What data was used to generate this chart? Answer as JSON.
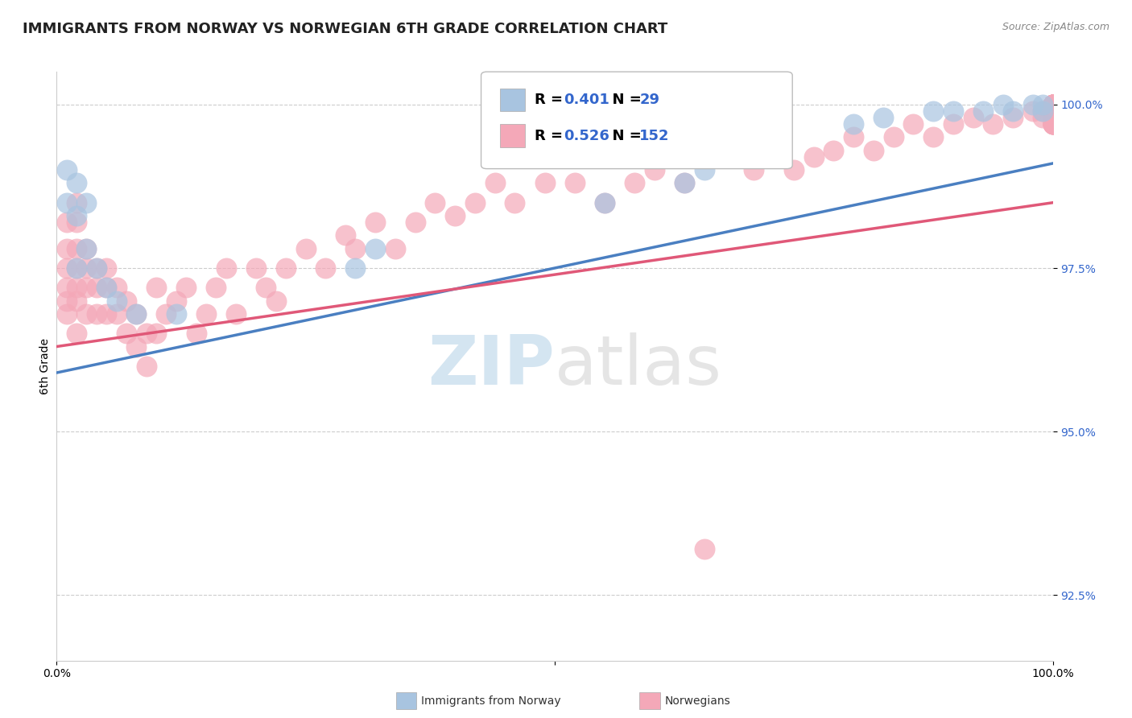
{
  "title": "IMMIGRANTS FROM NORWAY VS NORWEGIAN 6TH GRADE CORRELATION CHART",
  "source_text": "Source: ZipAtlas.com",
  "xlabel": "",
  "ylabel": "6th Grade",
  "x_min": 0.0,
  "x_max": 1.0,
  "y_min": 0.915,
  "y_max": 1.005,
  "y_tick_labels": [
    "92.5%",
    "95.0%",
    "97.5%",
    "100.0%"
  ],
  "y_tick_values": [
    0.925,
    0.95,
    0.975,
    1.0
  ],
  "grid_color": "#cccccc",
  "background_color": "#ffffff",
  "blue_scatter_color": "#a8c4e0",
  "pink_scatter_color": "#f4a8b8",
  "blue_line_color": "#4a7fc1",
  "pink_line_color": "#e05878",
  "legend_R1": "0.401",
  "legend_N1": "29",
  "legend_R2": "0.526",
  "legend_N2": "152",
  "legend_box_blue": "#a8c4e0",
  "legend_box_pink": "#f4a8b8",
  "watermark_color_zip": "#b8d4e8",
  "watermark_color_atlas": "#d4d4d4",
  "legend_fontsize": 13,
  "title_fontsize": 13,
  "axis_label_fontsize": 10,
  "tick_fontsize": 10,
  "blue_scatter_x": [
    0.01,
    0.01,
    0.02,
    0.02,
    0.02,
    0.03,
    0.03,
    0.04,
    0.05,
    0.06,
    0.08,
    0.12,
    0.3,
    0.32,
    0.55,
    0.63,
    0.65,
    0.68,
    0.7,
    0.8,
    0.83,
    0.88,
    0.9,
    0.93,
    0.95,
    0.96,
    0.98,
    0.99,
    0.99
  ],
  "blue_scatter_y": [
    0.99,
    0.985,
    0.988,
    0.983,
    0.975,
    0.985,
    0.978,
    0.975,
    0.972,
    0.97,
    0.968,
    0.968,
    0.975,
    0.978,
    0.985,
    0.988,
    0.99,
    0.992,
    0.993,
    0.997,
    0.998,
    0.999,
    0.999,
    0.999,
    1.0,
    0.999,
    1.0,
    0.999,
    1.0
  ],
  "pink_scatter_x": [
    0.01,
    0.01,
    0.01,
    0.01,
    0.01,
    0.01,
    0.02,
    0.02,
    0.02,
    0.02,
    0.02,
    0.02,
    0.02,
    0.03,
    0.03,
    0.03,
    0.03,
    0.04,
    0.04,
    0.04,
    0.05,
    0.05,
    0.05,
    0.06,
    0.06,
    0.07,
    0.07,
    0.08,
    0.08,
    0.09,
    0.09,
    0.1,
    0.1,
    0.11,
    0.12,
    0.13,
    0.14,
    0.15,
    0.16,
    0.17,
    0.18,
    0.2,
    0.21,
    0.22,
    0.23,
    0.25,
    0.27,
    0.29,
    0.3,
    0.32,
    0.34,
    0.36,
    0.38,
    0.4,
    0.42,
    0.44,
    0.46,
    0.49,
    0.52,
    0.55,
    0.58,
    0.6,
    0.63,
    0.65,
    0.68,
    0.7,
    0.72,
    0.74,
    0.76,
    0.78,
    0.8,
    0.82,
    0.84,
    0.86,
    0.88,
    0.9,
    0.92,
    0.94,
    0.96,
    0.98,
    0.99,
    0.99,
    1.0,
    1.0,
    1.0,
    1.0,
    1.0,
    1.0,
    1.0,
    1.0,
    1.0,
    1.0,
    1.0,
    1.0,
    1.0,
    1.0,
    1.0,
    1.0,
    1.0,
    1.0,
    1.0,
    1.0,
    1.0,
    1.0,
    1.0,
    1.0,
    1.0,
    1.0,
    1.0,
    1.0,
    1.0,
    1.0,
    1.0,
    1.0,
    1.0,
    1.0,
    1.0,
    1.0,
    1.0,
    1.0,
    1.0,
    1.0,
    1.0,
    1.0,
    1.0,
    1.0,
    1.0,
    1.0,
    1.0,
    1.0,
    1.0,
    1.0,
    1.0,
    1.0,
    1.0,
    1.0,
    1.0,
    1.0,
    1.0,
    1.0,
    1.0,
    1.0,
    1.0,
    1.0,
    1.0,
    1.0,
    1.0,
    1.0,
    1.0,
    1.0,
    1.0,
    1.0
  ],
  "pink_scatter_y": [
    0.982,
    0.978,
    0.975,
    0.972,
    0.97,
    0.968,
    0.985,
    0.982,
    0.978,
    0.975,
    0.972,
    0.97,
    0.965,
    0.978,
    0.975,
    0.972,
    0.968,
    0.975,
    0.972,
    0.968,
    0.975,
    0.972,
    0.968,
    0.972,
    0.968,
    0.97,
    0.965,
    0.968,
    0.963,
    0.965,
    0.96,
    0.972,
    0.965,
    0.968,
    0.97,
    0.972,
    0.965,
    0.968,
    0.972,
    0.975,
    0.968,
    0.975,
    0.972,
    0.97,
    0.975,
    0.978,
    0.975,
    0.98,
    0.978,
    0.982,
    0.978,
    0.982,
    0.985,
    0.983,
    0.985,
    0.988,
    0.985,
    0.988,
    0.988,
    0.985,
    0.988,
    0.99,
    0.988,
    0.932,
    0.992,
    0.99,
    0.992,
    0.99,
    0.992,
    0.993,
    0.995,
    0.993,
    0.995,
    0.997,
    0.995,
    0.997,
    0.998,
    0.997,
    0.998,
    0.999,
    0.998,
    0.999,
    1.0,
    0.999,
    1.0,
    0.999,
    1.0,
    0.999,
    1.0,
    1.0,
    0.999,
    1.0,
    0.999,
    1.0,
    0.998,
    1.0,
    0.998,
    0.999,
    1.0,
    0.999,
    0.998,
    1.0,
    0.999,
    1.0,
    0.998,
    0.999,
    1.0,
    0.999,
    0.998,
    0.999,
    1.0,
    0.999,
    0.998,
    1.0,
    0.999,
    0.998,
    1.0,
    0.999,
    0.998,
    1.0,
    0.999,
    0.998,
    1.0,
    0.999,
    0.998,
    1.0,
    0.999,
    0.998,
    1.0,
    0.999,
    0.998,
    0.997,
    1.0,
    0.999,
    0.998,
    0.997,
    1.0,
    0.999,
    0.998,
    0.997,
    1.0,
    0.999,
    0.998,
    0.997,
    1.0,
    0.999,
    0.998,
    0.997,
    1.0,
    0.999,
    0.998,
    0.997
  ]
}
